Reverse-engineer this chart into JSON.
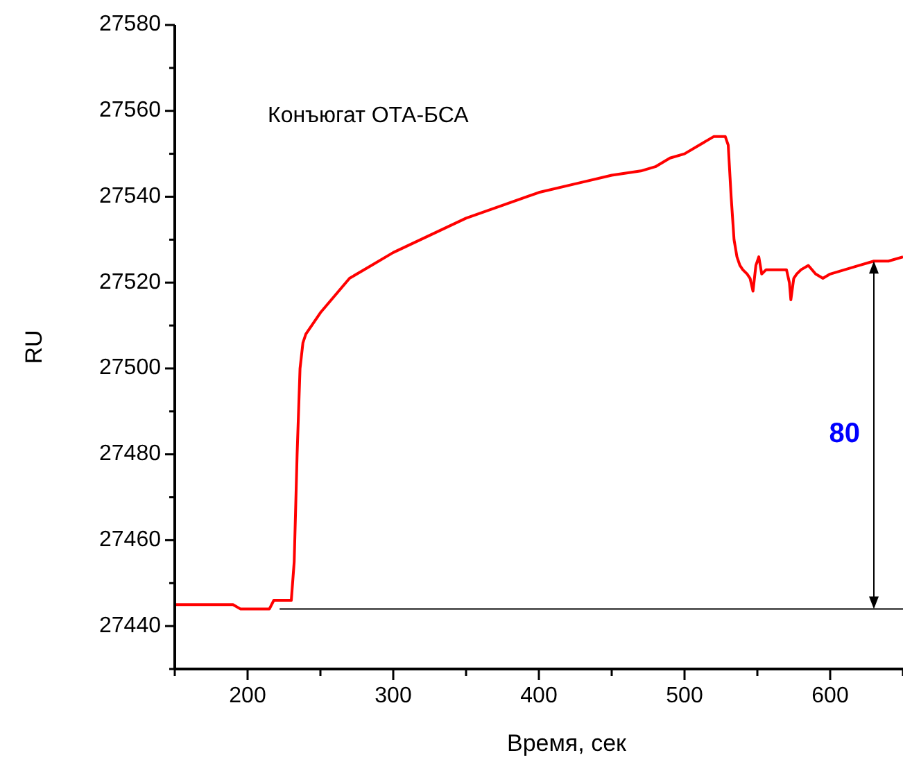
{
  "chart_data": {
    "type": "line",
    "xlabel": "Время, сек",
    "ylabel": "RU",
    "xlim": [
      150,
      650
    ],
    "ylim": [
      27430,
      27580
    ],
    "xticks": [
      {
        "value": 150,
        "label": null
      },
      200,
      {
        "value": 250,
        "label": null
      },
      300,
      {
        "value": 350,
        "label": null
      },
      400,
      {
        "value": 450,
        "label": null
      },
      500,
      {
        "value": 550,
        "label": null
      },
      600,
      {
        "value": 650,
        "label": null
      }
    ],
    "yticks": [
      {
        "value": 27430,
        "label": null
      },
      27440,
      {
        "value": 27450,
        "label": null
      },
      27460,
      {
        "value": 27470,
        "label": null
      },
      27480,
      {
        "value": 27490,
        "label": null
      },
      27500,
      {
        "value": 27510,
        "label": null
      },
      27520,
      {
        "value": 27530,
        "label": null
      },
      27540,
      {
        "value": 27550,
        "label": null
      },
      27560,
      {
        "value": 27570,
        "label": null
      },
      27580
    ],
    "grid": false,
    "marker": "none",
    "line_style": "solid",
    "series": [
      {
        "name": "Конъюгат ОТА-БСА",
        "color": "#ff0000",
        "x": [
          150,
          170,
          190,
          195,
          200,
          215,
          218,
          225,
          230,
          232,
          234,
          236,
          238,
          240,
          250,
          260,
          270,
          285,
          300,
          325,
          350,
          375,
          400,
          425,
          450,
          470,
          480,
          490,
          500,
          510,
          520,
          525,
          528,
          530,
          532,
          534,
          536,
          538,
          540,
          543,
          545,
          547,
          549,
          551,
          553,
          556,
          560,
          565,
          570,
          572,
          573,
          575,
          577,
          580,
          585,
          590,
          595,
          600,
          610,
          620,
          630,
          640,
          650
        ],
        "values": [
          27445,
          27445,
          27445,
          27444,
          27444,
          27444,
          27446,
          27446,
          27446,
          27455,
          27480,
          27500,
          27506,
          27508,
          27513,
          27517,
          27521,
          27524,
          27527,
          27531,
          27535,
          27538,
          27541,
          27543,
          27545,
          27546,
          27547,
          27549,
          27550,
          27552,
          27554,
          27554,
          27554,
          27552,
          27540,
          27530,
          27526,
          27524,
          27523,
          27522,
          27521,
          27518,
          27524,
          27526,
          27522,
          27523,
          27523,
          27523,
          27523,
          27520,
          27516,
          27521,
          27522,
          27523,
          27524,
          27522,
          27521,
          27522,
          27523,
          27524,
          27525,
          27525,
          27526
        ]
      }
    ],
    "ref_lines": [
      {
        "axis": "y",
        "value": 27444,
        "color": "#000000"
      }
    ],
    "annotations": [
      "80"
    ]
  }
}
